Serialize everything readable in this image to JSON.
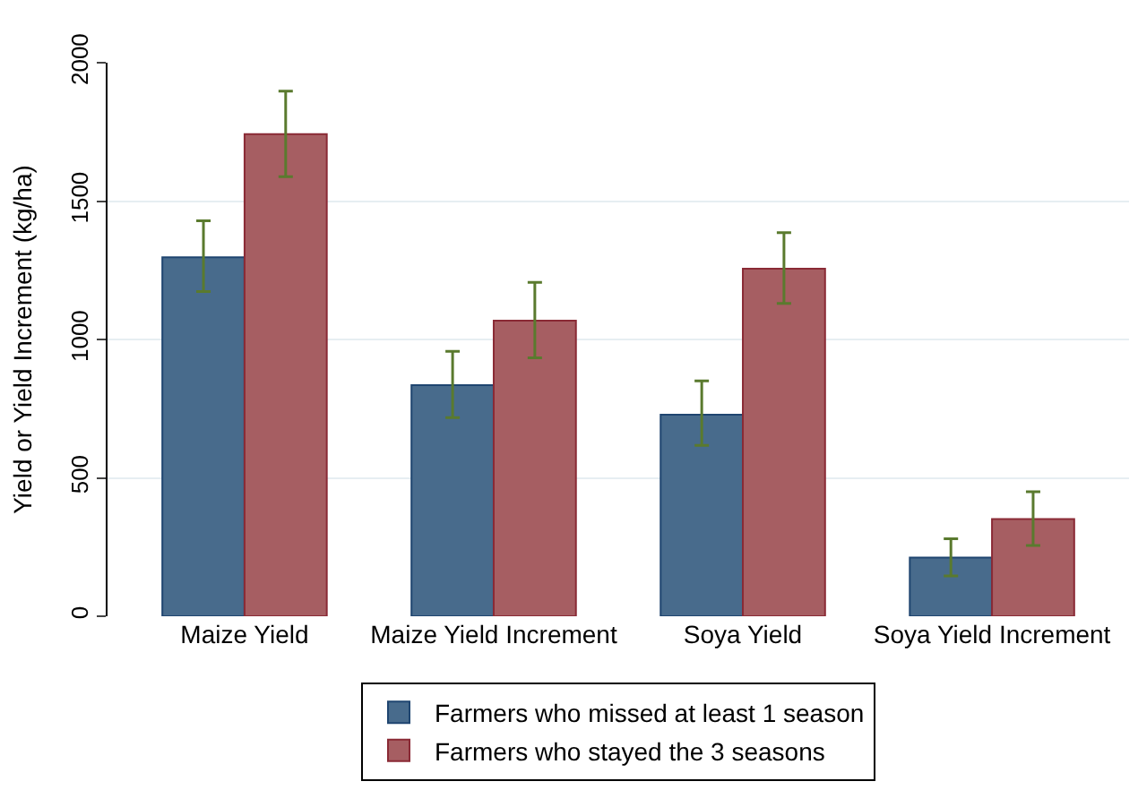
{
  "chart_data": {
    "type": "bar",
    "ylabel": "Yield or Yield Increment (kg/ha)",
    "categories": [
      "Maize Yield",
      "Maize Yield Increment",
      "Soya Yield",
      "Soya Yield Increment"
    ],
    "series": [
      {
        "name": "Farmers who missed at least 1 season",
        "color": "#486b8c",
        "values": [
          1297,
          835,
          728,
          212
        ],
        "errors": [
          [
            1173,
            1429
          ],
          [
            718,
            957
          ],
          [
            617,
            850
          ],
          [
            146,
            280
          ]
        ]
      },
      {
        "name": "Farmers who stayed the 3 seasons",
        "color": "#a65e62",
        "values": [
          1742,
          1068,
          1256,
          351
        ],
        "errors": [
          [
            1588,
            1897
          ],
          [
            934,
            1206
          ],
          [
            1130,
            1386
          ],
          [
            256,
            450
          ]
        ]
      }
    ],
    "ylim": [
      0,
      2000
    ],
    "yticks": [
      0,
      500,
      1000,
      1500,
      2000
    ],
    "grid": "y",
    "legend": "bottom"
  }
}
